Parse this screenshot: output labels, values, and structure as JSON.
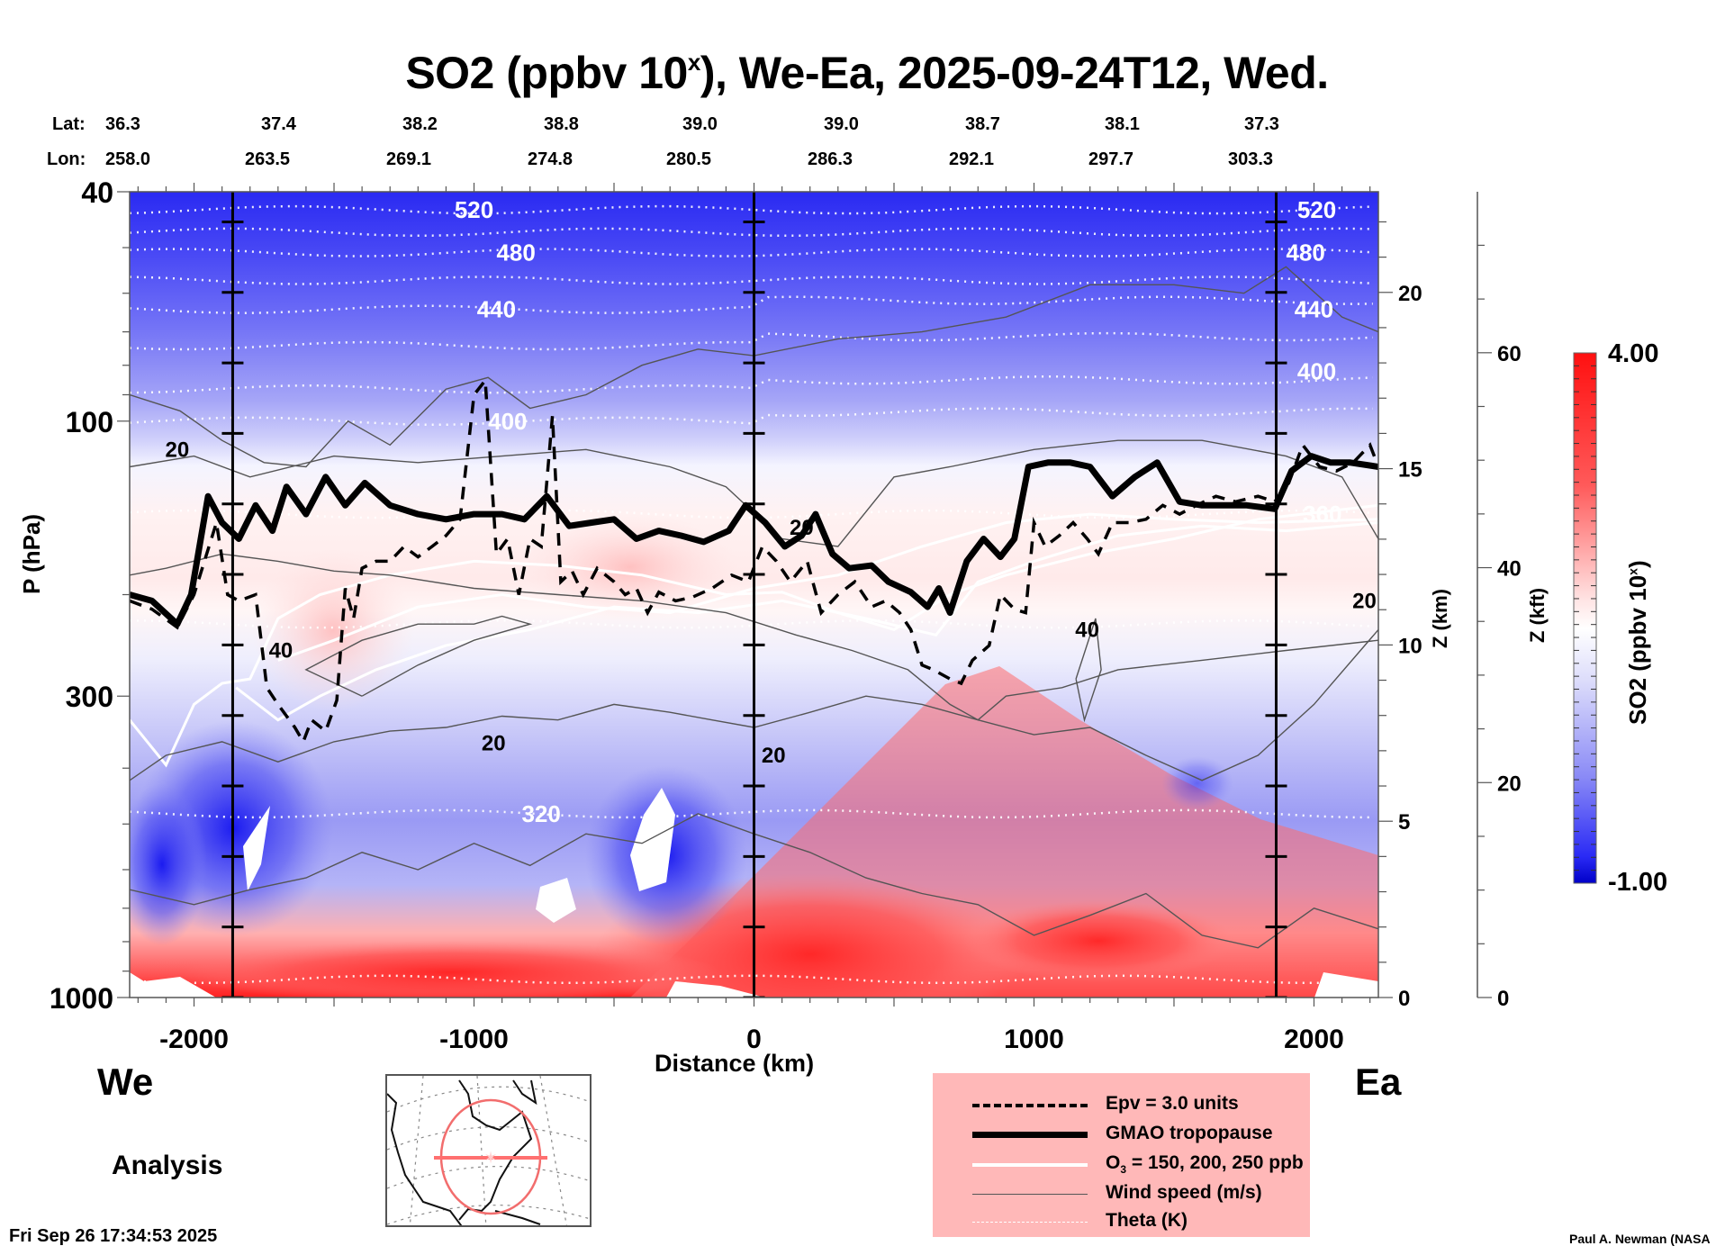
{
  "chart_data": {
    "type": "heatmap",
    "title": "SO2 (ppbv 10",
    "title_sup": "x",
    "title_rest": "), We-Ea, 2025-09-24T12, Wed.",
    "xlabel": "Distance (km)",
    "ylabel": "P (hPa)",
    "y2label": "Z (km)",
    "y3label": "Z (kft)",
    "colorbar_label": "SO2 (ppbv 10",
    "colorbar_label_sup": "x",
    "colorbar_label_end": ")",
    "xlim": [
      -2230,
      2230
    ],
    "ylim": [
      1000,
      40
    ],
    "y_scale": "log",
    "x_ticks": [
      -2000,
      -1000,
      0,
      1000,
      2000
    ],
    "x_tick_labels": [
      "-2000",
      "-1000",
      "0",
      "1000",
      "2000"
    ],
    "y_ticks": [
      40,
      100,
      300,
      1000
    ],
    "y_tick_labels": [
      "40",
      "100",
      "300",
      "1000"
    ],
    "z_km_ticks": [
      0,
      5,
      10,
      15,
      20
    ],
    "z_kft_ticks": [
      0,
      20,
      40,
      60
    ],
    "colorbar_range": [
      -1.0,
      4.0
    ],
    "colorbar_tick_labels": [
      "4.00",
      "-1.00"
    ],
    "colormap": {
      "low": "#0000e6",
      "mid": "#ffffff",
      "high": "#ff1010"
    },
    "section_markers_km": [
      -1862,
      0,
      1865
    ],
    "lat_label": "Lat:",
    "lon_label": "Lon:",
    "lat_values": [
      "36.3",
      "37.4",
      "38.2",
      "38.8",
      "39.0",
      "39.0",
      "38.7",
      "38.1",
      "37.3"
    ],
    "lon_values": [
      "258.0",
      "263.5",
      "269.1",
      "274.8",
      "280.5",
      "286.3",
      "292.1",
      "297.7",
      "303.3"
    ],
    "theta_labels": [
      {
        "text": "520",
        "x_km": -1000,
        "p": 43
      },
      {
        "text": "480",
        "x_km": -850,
        "p": 51
      },
      {
        "text": "440",
        "x_km": -920,
        "p": 64
      },
      {
        "text": "400",
        "x_km": -880,
        "p": 100
      },
      {
        "text": "520",
        "x_km": 2010,
        "p": 43
      },
      {
        "text": "480",
        "x_km": 1970,
        "p": 51
      },
      {
        "text": "440",
        "x_km": 2000,
        "p": 64
      },
      {
        "text": "400",
        "x_km": 2010,
        "p": 82
      },
      {
        "text": "360",
        "x_km": 2030,
        "p": 145
      },
      {
        "text": "320",
        "x_km": -760,
        "p": 480
      }
    ],
    "wind_labels": [
      {
        "text": "20",
        "x_km": -2060,
        "p": 112
      },
      {
        "text": "40",
        "x_km": -1690,
        "p": 250
      },
      {
        "text": "20",
        "x_km": -930,
        "p": 362
      },
      {
        "text": "20",
        "x_km": 70,
        "p": 380
      },
      {
        "text": "20",
        "x_km": 170,
        "p": 153
      },
      {
        "text": "40",
        "x_km": 1190,
        "p": 230
      },
      {
        "text": "20",
        "x_km": 2180,
        "p": 205
      }
    ],
    "series": [
      {
        "name": "GMAO tropopause",
        "style": "thick-solid",
        "points": [
          [
            -2230,
            200
          ],
          [
            -2150,
            205
          ],
          [
            -2060,
            225
          ],
          [
            -2010,
            200
          ],
          [
            -1950,
            135
          ],
          [
            -1900,
            150
          ],
          [
            -1840,
            160
          ],
          [
            -1780,
            140
          ],
          [
            -1720,
            155
          ],
          [
            -1670,
            130
          ],
          [
            -1600,
            145
          ],
          [
            -1530,
            125
          ],
          [
            -1460,
            140
          ],
          [
            -1390,
            128
          ],
          [
            -1300,
            140
          ],
          [
            -1200,
            145
          ],
          [
            -1100,
            148
          ],
          [
            -1000,
            145
          ],
          [
            -900,
            145
          ],
          [
            -820,
            148
          ],
          [
            -740,
            135
          ],
          [
            -660,
            152
          ],
          [
            -580,
            150
          ],
          [
            -500,
            148
          ],
          [
            -420,
            160
          ],
          [
            -340,
            155
          ],
          [
            -260,
            158
          ],
          [
            -180,
            162
          ],
          [
            -90,
            155
          ],
          [
            -30,
            140
          ],
          [
            40,
            150
          ],
          [
            110,
            165
          ],
          [
            170,
            158
          ],
          [
            220,
            145
          ],
          [
            280,
            170
          ],
          [
            340,
            180
          ],
          [
            420,
            178
          ],
          [
            480,
            190
          ],
          [
            560,
            198
          ],
          [
            620,
            210
          ],
          [
            660,
            195
          ],
          [
            700,
            215
          ],
          [
            760,
            175
          ],
          [
            820,
            160
          ],
          [
            880,
            172
          ],
          [
            930,
            160
          ],
          [
            980,
            120
          ],
          [
            1050,
            118
          ],
          [
            1130,
            118
          ],
          [
            1200,
            120
          ],
          [
            1280,
            135
          ],
          [
            1360,
            125
          ],
          [
            1440,
            118
          ],
          [
            1520,
            138
          ],
          [
            1600,
            140
          ],
          [
            1680,
            140
          ],
          [
            1760,
            140
          ],
          [
            1860,
            142
          ],
          [
            1920,
            122
          ],
          [
            1990,
            115
          ],
          [
            2060,
            118
          ],
          [
            2130,
            118
          ],
          [
            2230,
            120
          ]
        ]
      },
      {
        "name": "Epv = 3.0 units",
        "style": "dashed",
        "points": [
          [
            -2230,
            205
          ],
          [
            -2150,
            212
          ],
          [
            -2060,
            228
          ],
          [
            -2000,
            200
          ],
          [
            -1920,
            150
          ],
          [
            -1880,
            200
          ],
          [
            -1840,
            205
          ],
          [
            -1780,
            200
          ],
          [
            -1740,
            290
          ],
          [
            -1700,
            310
          ],
          [
            -1640,
            340
          ],
          [
            -1610,
            360
          ],
          [
            -1580,
            330
          ],
          [
            -1530,
            345
          ],
          [
            -1490,
            305
          ],
          [
            -1460,
            195
          ],
          [
            -1430,
            220
          ],
          [
            -1400,
            180
          ],
          [
            -1350,
            175
          ],
          [
            -1300,
            175
          ],
          [
            -1250,
            165
          ],
          [
            -1200,
            172
          ],
          [
            -1150,
            165
          ],
          [
            -1100,
            158
          ],
          [
            -1050,
            148
          ],
          [
            -1000,
            90
          ],
          [
            -960,
            85
          ],
          [
            -920,
            170
          ],
          [
            -880,
            160
          ],
          [
            -840,
            200
          ],
          [
            -800,
            160
          ],
          [
            -760,
            165
          ],
          [
            -720,
            98
          ],
          [
            -690,
            190
          ],
          [
            -650,
            182
          ],
          [
            -610,
            200
          ],
          [
            -560,
            180
          ],
          [
            -500,
            190
          ],
          [
            -460,
            200
          ],
          [
            -420,
            195
          ],
          [
            -380,
            215
          ],
          [
            -340,
            198
          ],
          [
            -280,
            205
          ],
          [
            -220,
            202
          ],
          [
            -150,
            195
          ],
          [
            -80,
            185
          ],
          [
            -20,
            190
          ],
          [
            30,
            165
          ],
          [
            80,
            175
          ],
          [
            130,
            190
          ],
          [
            190,
            175
          ],
          [
            240,
            215
          ],
          [
            300,
            200
          ],
          [
            360,
            190
          ],
          [
            420,
            210
          ],
          [
            470,
            205
          ],
          [
            520,
            215
          ],
          [
            560,
            230
          ],
          [
            600,
            265
          ],
          [
            640,
            270
          ],
          [
            700,
            280
          ],
          [
            740,
            285
          ],
          [
            780,
            260
          ],
          [
            840,
            245
          ],
          [
            880,
            200
          ],
          [
            930,
            212
          ],
          [
            970,
            215
          ],
          [
            1000,
            150
          ],
          [
            1040,
            165
          ],
          [
            1090,
            158
          ],
          [
            1140,
            150
          ],
          [
            1190,
            160
          ],
          [
            1230,
            170
          ],
          [
            1280,
            150
          ],
          [
            1340,
            150
          ],
          [
            1400,
            148
          ],
          [
            1460,
            140
          ],
          [
            1520,
            145
          ],
          [
            1580,
            140
          ],
          [
            1650,
            135
          ],
          [
            1720,
            138
          ],
          [
            1800,
            135
          ],
          [
            1860,
            138
          ],
          [
            1910,
            128
          ],
          [
            1960,
            110
          ],
          [
            2020,
            120
          ],
          [
            2080,
            122
          ],
          [
            2140,
            118
          ],
          [
            2200,
            110
          ],
          [
            2230,
            120
          ]
        ]
      }
    ]
  },
  "header": {
    "axis_left_top": "40"
  },
  "labels": {
    "west": "We",
    "east": "Ea",
    "analysis": "Analysis",
    "timestamp": "Fri Sep 26 17:34:53 2025",
    "credit": "Paul A. Newman (NASA"
  },
  "legend": {
    "items": [
      {
        "label": "Epv = 3.0 units",
        "style": "dashed-black"
      },
      {
        "label": "GMAO tropopause",
        "style": "thick-black"
      },
      {
        "label_pre": "O",
        "label_sub": "3",
        "label_post": " = 150, 200, 250 ppb",
        "style": "white"
      },
      {
        "label": "Wind speed (m/s)",
        "style": "thin-gray"
      },
      {
        "label": "Theta (K)",
        "style": "dotted-white"
      }
    ],
    "background": "#ffb8b8"
  },
  "minimap": {
    "circle_color": "#f26d6d",
    "track_color": "#ff7070"
  }
}
